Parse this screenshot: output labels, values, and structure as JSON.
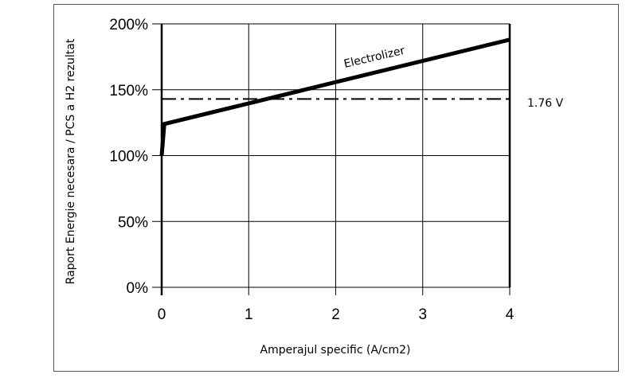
{
  "chart_data": {
    "type": "line",
    "title": "",
    "xlabel": "Amperajul specific (A/cm2)",
    "ylabel": "Raport Energie necesara / PCS a H2 rezultat",
    "xlim": [
      0,
      4
    ],
    "ylim": [
      0,
      200
    ],
    "x_ticks": [
      0,
      1,
      2,
      3,
      4
    ],
    "x_tick_labels": [
      "0",
      "1",
      "2",
      "3",
      "4"
    ],
    "y_ticks": [
      0,
      50,
      100,
      150,
      200
    ],
    "y_tick_labels": [
      "0%",
      "50%",
      "100%",
      "150%",
      "200%"
    ],
    "grid": true,
    "series": [
      {
        "name": "Electrolizer",
        "x": [
          0,
          0.03,
          4
        ],
        "y": [
          100,
          124,
          188
        ],
        "style": "solid-thick",
        "color": "#000000"
      },
      {
        "name": "1.76 V",
        "x": [
          0,
          4
        ],
        "y": [
          143,
          143
        ],
        "style": "dash-dot",
        "color": "#000000"
      }
    ],
    "annotations": [
      "Electrolizer",
      "1.76 V"
    ]
  }
}
